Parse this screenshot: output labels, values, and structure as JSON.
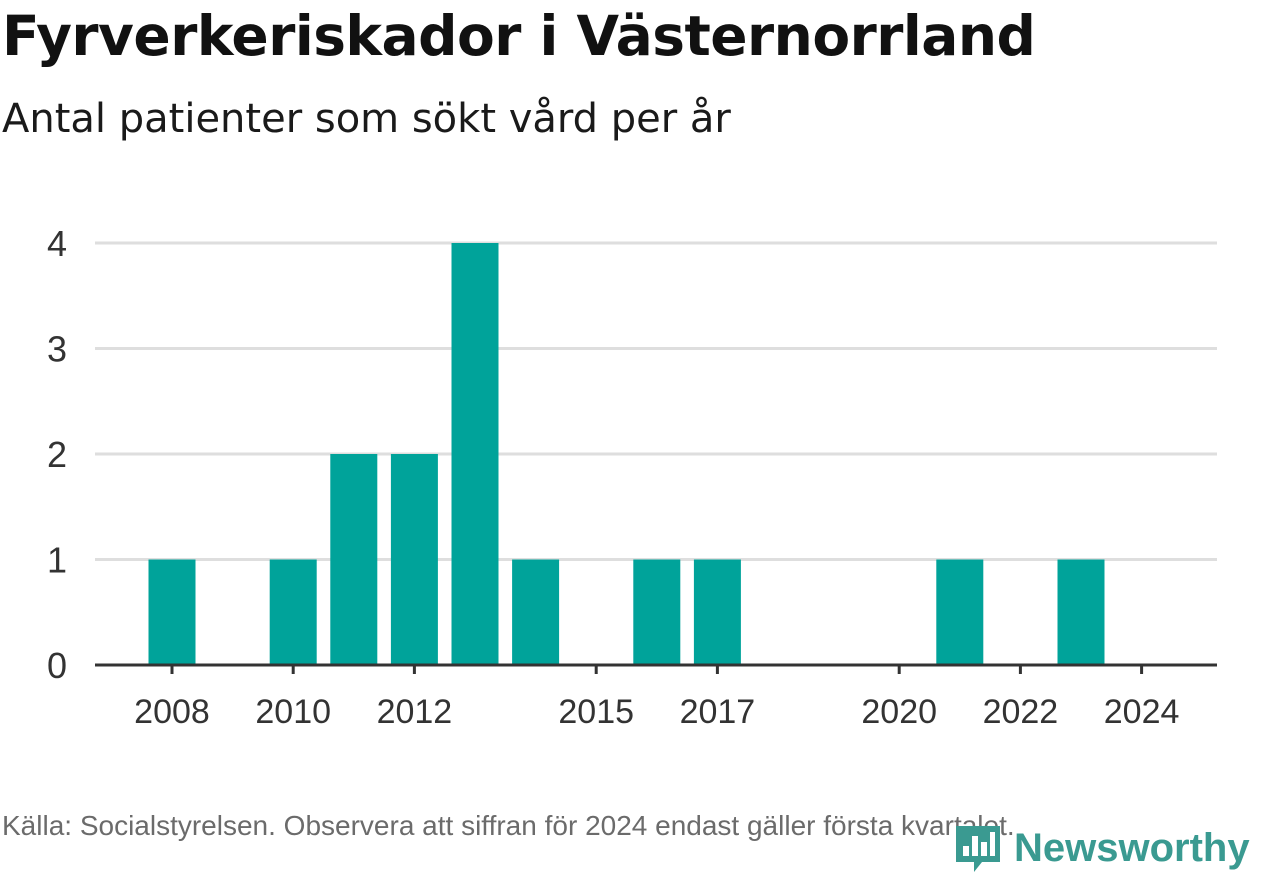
{
  "chart_data": {
    "type": "bar",
    "title": "Fyrverkeriskador i Västernorrland",
    "subtitle": "Antal patienter som sökt vård per år",
    "x": [
      2008,
      2009,
      2010,
      2011,
      2012,
      2013,
      2014,
      2015,
      2016,
      2017,
      2018,
      2019,
      2020,
      2021,
      2022,
      2023,
      2024
    ],
    "values": [
      1,
      0,
      1,
      2,
      2,
      4,
      1,
      0,
      1,
      1,
      0,
      0,
      0,
      1,
      0,
      1,
      0
    ],
    "xtick_labels": [
      "2008",
      "2010",
      "2012",
      "2015",
      "2017",
      "2020",
      "2022",
      "2024"
    ],
    "xtick_years": [
      2008,
      2010,
      2012,
      2015,
      2017,
      2020,
      2022,
      2024
    ],
    "yticks": [
      0,
      1,
      2,
      3,
      4
    ],
    "ylim": [
      0,
      4
    ],
    "xlabel": "",
    "ylabel": "",
    "grid": true,
    "bar_color": "#00a39a"
  },
  "footer": {
    "source": "Källa: Socialstyrelsen. Observera att siffran för 2024 endast gäller första kvartalet."
  },
  "logo": {
    "text": "Newsworthy",
    "icon": "newsworthy-bar-chart-icon",
    "color": "#3a9a91"
  }
}
